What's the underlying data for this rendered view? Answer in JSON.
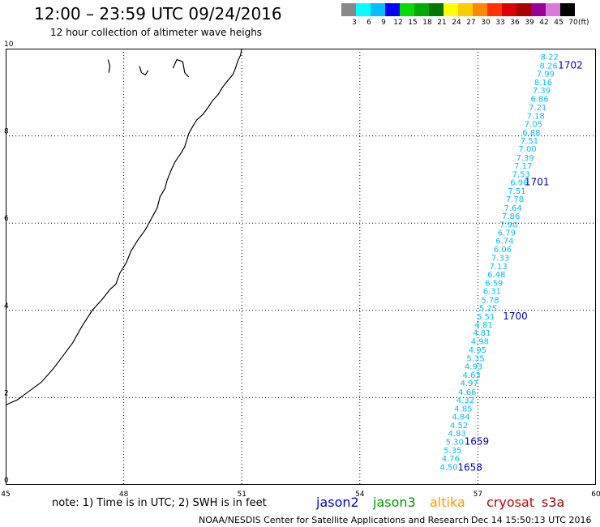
{
  "header": {
    "title": "12:00 – 23:59 UTC 09/24/2016",
    "subtitle": "12 hour collection of altimeter wave heighs"
  },
  "scale": {
    "unit": "(ft)",
    "labels": [
      "3",
      "6",
      "9",
      "12",
      "15",
      "18",
      "21",
      "24",
      "27",
      "30",
      "33",
      "36",
      "39",
      "42",
      "45",
      "70"
    ],
    "colors": [
      "#888888",
      "#00FFFF",
      "#00BFFF",
      "#0000FF",
      "#00DD00",
      "#00AA00",
      "#007700",
      "#FFFF00",
      "#FFCC00",
      "#FF8800",
      "#FF3300",
      "#DD0000",
      "#AA0000",
      "#990099",
      "#DD77DD",
      "#000000"
    ]
  },
  "note": "note: 1) Time is in UTC; 2) SWH is in feet",
  "satellites": [
    {
      "name": "jason2",
      "color": "#0000CC"
    },
    {
      "name": "jason3",
      "color": "#009900"
    },
    {
      "name": "altika",
      "color": "#FF9900"
    },
    {
      "name": "cryosat",
      "color": "#CC0000"
    },
    {
      "name": "s3a",
      "color": "#990000"
    }
  ],
  "footer": {
    "credit": "NOAA/NESDIS Center for Satellite Applications and Research",
    "date": "Dec 14 15:50:13 UTC 2016"
  },
  "chart_data": {
    "type": "scatter",
    "title": "12:00 – 23:59 UTC 09/24/2016",
    "subtitle": "12 hour collection of altimeter wave heighs",
    "xlim": [
      45,
      60
    ],
    "ylim": [
      0,
      10
    ],
    "x_ticks": [
      45,
      48,
      51,
      54,
      57,
      60
    ],
    "y_ticks": [
      0,
      2,
      4,
      6,
      8,
      10
    ],
    "grid": true,
    "series": [
      {
        "name": "jason2",
        "color": "#00BFFF",
        "points": [
          {
            "x": 58.82,
            "y": 9.82,
            "label": "8.22"
          },
          {
            "x": 58.8,
            "y": 9.62,
            "label": "8.26"
          },
          {
            "x": 58.72,
            "y": 9.43,
            "label": "7.99"
          },
          {
            "x": 58.66,
            "y": 9.24,
            "label": "8.16"
          },
          {
            "x": 58.62,
            "y": 9.05,
            "label": "7.39"
          },
          {
            "x": 58.57,
            "y": 8.86,
            "label": "6.86"
          },
          {
            "x": 58.52,
            "y": 8.66,
            "label": "7.21"
          },
          {
            "x": 58.47,
            "y": 8.47,
            "label": "7.18"
          },
          {
            "x": 58.41,
            "y": 8.28,
            "label": "7.05"
          },
          {
            "x": 58.36,
            "y": 8.09,
            "label": "6.88"
          },
          {
            "x": 58.31,
            "y": 7.9,
            "label": "7.51"
          },
          {
            "x": 58.26,
            "y": 7.71,
            "label": "7.00"
          },
          {
            "x": 58.2,
            "y": 7.51,
            "label": "7.39"
          },
          {
            "x": 58.15,
            "y": 7.32,
            "label": "7.17"
          },
          {
            "x": 58.1,
            "y": 7.13,
            "label": "7.53"
          },
          {
            "x": 58.05,
            "y": 6.94,
            "label": "6.96"
          },
          {
            "x": 57.99,
            "y": 6.75,
            "label": "7.51"
          },
          {
            "x": 57.94,
            "y": 6.56,
            "label": "7.78"
          },
          {
            "x": 57.89,
            "y": 6.36,
            "label": "7.64"
          },
          {
            "x": 57.84,
            "y": 6.17,
            "label": "7.86"
          },
          {
            "x": 57.78,
            "y": 5.98,
            "label": "7.90"
          },
          {
            "x": 57.73,
            "y": 5.79,
            "label": "6.79"
          },
          {
            "x": 57.68,
            "y": 5.6,
            "label": "6.74"
          },
          {
            "x": 57.63,
            "y": 5.41,
            "label": "6.06"
          },
          {
            "x": 57.57,
            "y": 5.21,
            "label": "7.33"
          },
          {
            "x": 57.52,
            "y": 5.02,
            "label": "7.13"
          },
          {
            "x": 57.47,
            "y": 4.83,
            "label": "6.48"
          },
          {
            "x": 57.41,
            "y": 4.64,
            "label": "6.59"
          },
          {
            "x": 57.36,
            "y": 4.45,
            "label": "6.31"
          },
          {
            "x": 57.31,
            "y": 4.25,
            "label": "5.78"
          },
          {
            "x": 57.26,
            "y": 4.06,
            "label": "5.25"
          },
          {
            "x": 57.2,
            "y": 3.87,
            "label": "5.51"
          },
          {
            "x": 57.15,
            "y": 3.68,
            "label": "4.81"
          },
          {
            "x": 57.1,
            "y": 3.49,
            "label": "4.81"
          },
          {
            "x": 57.05,
            "y": 3.3,
            "label": "4.98"
          },
          {
            "x": 56.99,
            "y": 3.1,
            "label": "4.95"
          },
          {
            "x": 56.94,
            "y": 2.91,
            "label": "5.35"
          },
          {
            "x": 56.89,
            "y": 2.72,
            "label": "4.93"
          },
          {
            "x": 56.84,
            "y": 2.53,
            "label": "4.63"
          },
          {
            "x": 56.78,
            "y": 2.34,
            "label": "4.97"
          },
          {
            "x": 56.73,
            "y": 2.14,
            "label": "4.66"
          },
          {
            "x": 56.68,
            "y": 1.95,
            "label": "4.32"
          },
          {
            "x": 56.63,
            "y": 1.76,
            "label": "4.85"
          },
          {
            "x": 56.57,
            "y": 1.57,
            "label": "4.84"
          },
          {
            "x": 56.52,
            "y": 1.38,
            "label": "4.52"
          },
          {
            "x": 56.47,
            "y": 1.19,
            "label": "4.83"
          },
          {
            "x": 56.41,
            "y": 0.99,
            "label": "5.30"
          },
          {
            "x": 56.36,
            "y": 0.8,
            "label": "5.35"
          },
          {
            "x": 56.31,
            "y": 0.61,
            "label": "4.76"
          },
          {
            "x": 56.26,
            "y": 0.42,
            "label": "4.50"
          }
        ]
      }
    ],
    "time_labels": [
      {
        "x": 59.35,
        "y": 9.62,
        "label": "1702"
      },
      {
        "x": 58.5,
        "y": 6.94,
        "label": "1701"
      },
      {
        "x": 57.95,
        "y": 3.87,
        "label": "1700"
      },
      {
        "x": 56.97,
        "y": 0.99,
        "label": "1659"
      },
      {
        "x": 56.8,
        "y": 0.4,
        "label": "1658"
      }
    ],
    "coastline": [
      [
        51.0,
        10.0
      ],
      [
        50.97,
        9.85
      ],
      [
        50.9,
        9.72
      ],
      [
        50.84,
        9.55
      ],
      [
        50.77,
        9.4
      ],
      [
        50.63,
        9.25
      ],
      [
        50.5,
        9.1
      ],
      [
        50.4,
        8.95
      ],
      [
        50.25,
        8.8
      ],
      [
        50.15,
        8.66
      ],
      [
        50.02,
        8.5
      ],
      [
        49.85,
        8.36
      ],
      [
        49.75,
        8.21
      ],
      [
        49.65,
        8.05
      ],
      [
        49.6,
        7.9
      ],
      [
        49.55,
        7.75
      ],
      [
        49.45,
        7.6
      ],
      [
        49.3,
        7.4
      ],
      [
        49.2,
        7.2
      ],
      [
        49.1,
        6.98
      ],
      [
        49.05,
        6.8
      ],
      [
        48.92,
        6.6
      ],
      [
        48.85,
        6.35
      ],
      [
        48.7,
        6.1
      ],
      [
        48.55,
        5.85
      ],
      [
        48.35,
        5.6
      ],
      [
        48.18,
        5.35
      ],
      [
        48.07,
        5.1
      ],
      [
        47.9,
        4.85
      ],
      [
        47.8,
        4.6
      ],
      [
        47.65,
        4.48
      ],
      [
        47.45,
        4.25
      ],
      [
        47.2,
        4.0
      ],
      [
        46.95,
        3.65
      ],
      [
        46.7,
        3.25
      ],
      [
        46.45,
        2.95
      ],
      [
        46.2,
        2.65
      ],
      [
        45.9,
        2.35
      ],
      [
        45.6,
        2.15
      ],
      [
        45.3,
        1.95
      ],
      [
        45.0,
        1.83
      ]
    ],
    "islands": [
      [
        [
          47.62,
          9.45
        ],
        [
          47.65,
          9.6
        ],
        [
          47.6,
          9.75
        ]
      ],
      [
        [
          48.4,
          9.6
        ],
        [
          48.45,
          9.45
        ],
        [
          48.55,
          9.4
        ],
        [
          48.62,
          9.5
        ]
      ],
      [
        [
          49.25,
          9.55
        ],
        [
          49.35,
          9.75
        ],
        [
          49.5,
          9.7
        ],
        [
          49.55,
          9.45
        ],
        [
          49.65,
          9.35
        ]
      ]
    ]
  }
}
